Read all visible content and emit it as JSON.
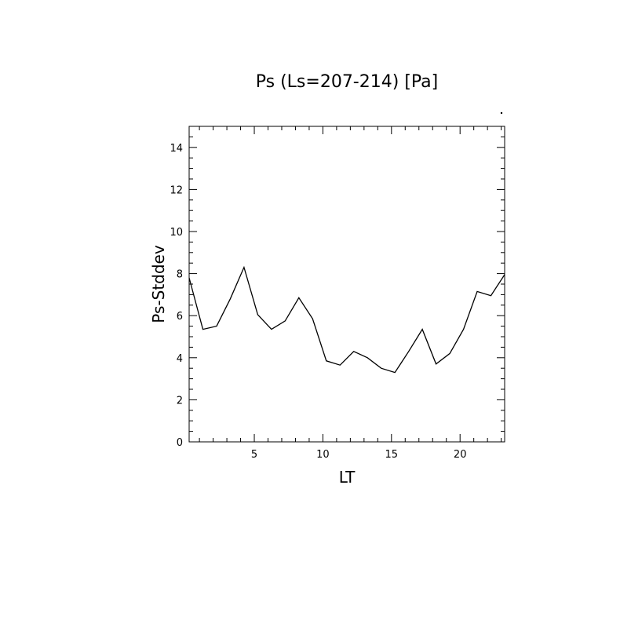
{
  "chart_data": {
    "type": "line",
    "title": "Ps (Ls=207-214) [Pa]",
    "xlabel": "LT",
    "ylabel": "Ps-Stddev",
    "xlim": [
      0.25,
      23.25
    ],
    "ylim": [
      0,
      15
    ],
    "x_ticks": [
      5,
      10,
      15,
      20
    ],
    "y_ticks": [
      0,
      2,
      4,
      6,
      8,
      10,
      12,
      14
    ],
    "grid": false,
    "series": [
      {
        "x": [
          0.25,
          1.25,
          2.25,
          3.25,
          4.25,
          5.25,
          6.25,
          7.25,
          8.25,
          9.25,
          10.25,
          11.25,
          12.25,
          13.25,
          14.25,
          15.25,
          16.25,
          17.25,
          18.25,
          19.25,
          20.25,
          21.25,
          22.25,
          23.25
        ],
        "values": [
          7.8,
          5.35,
          5.5,
          6.8,
          8.3,
          6.05,
          5.35,
          5.75,
          6.85,
          5.85,
          3.85,
          3.65,
          4.3,
          4.0,
          3.5,
          3.3,
          4.3,
          5.35,
          3.7,
          4.2,
          5.35,
          7.15,
          6.95,
          7.95
        ]
      }
    ]
  }
}
